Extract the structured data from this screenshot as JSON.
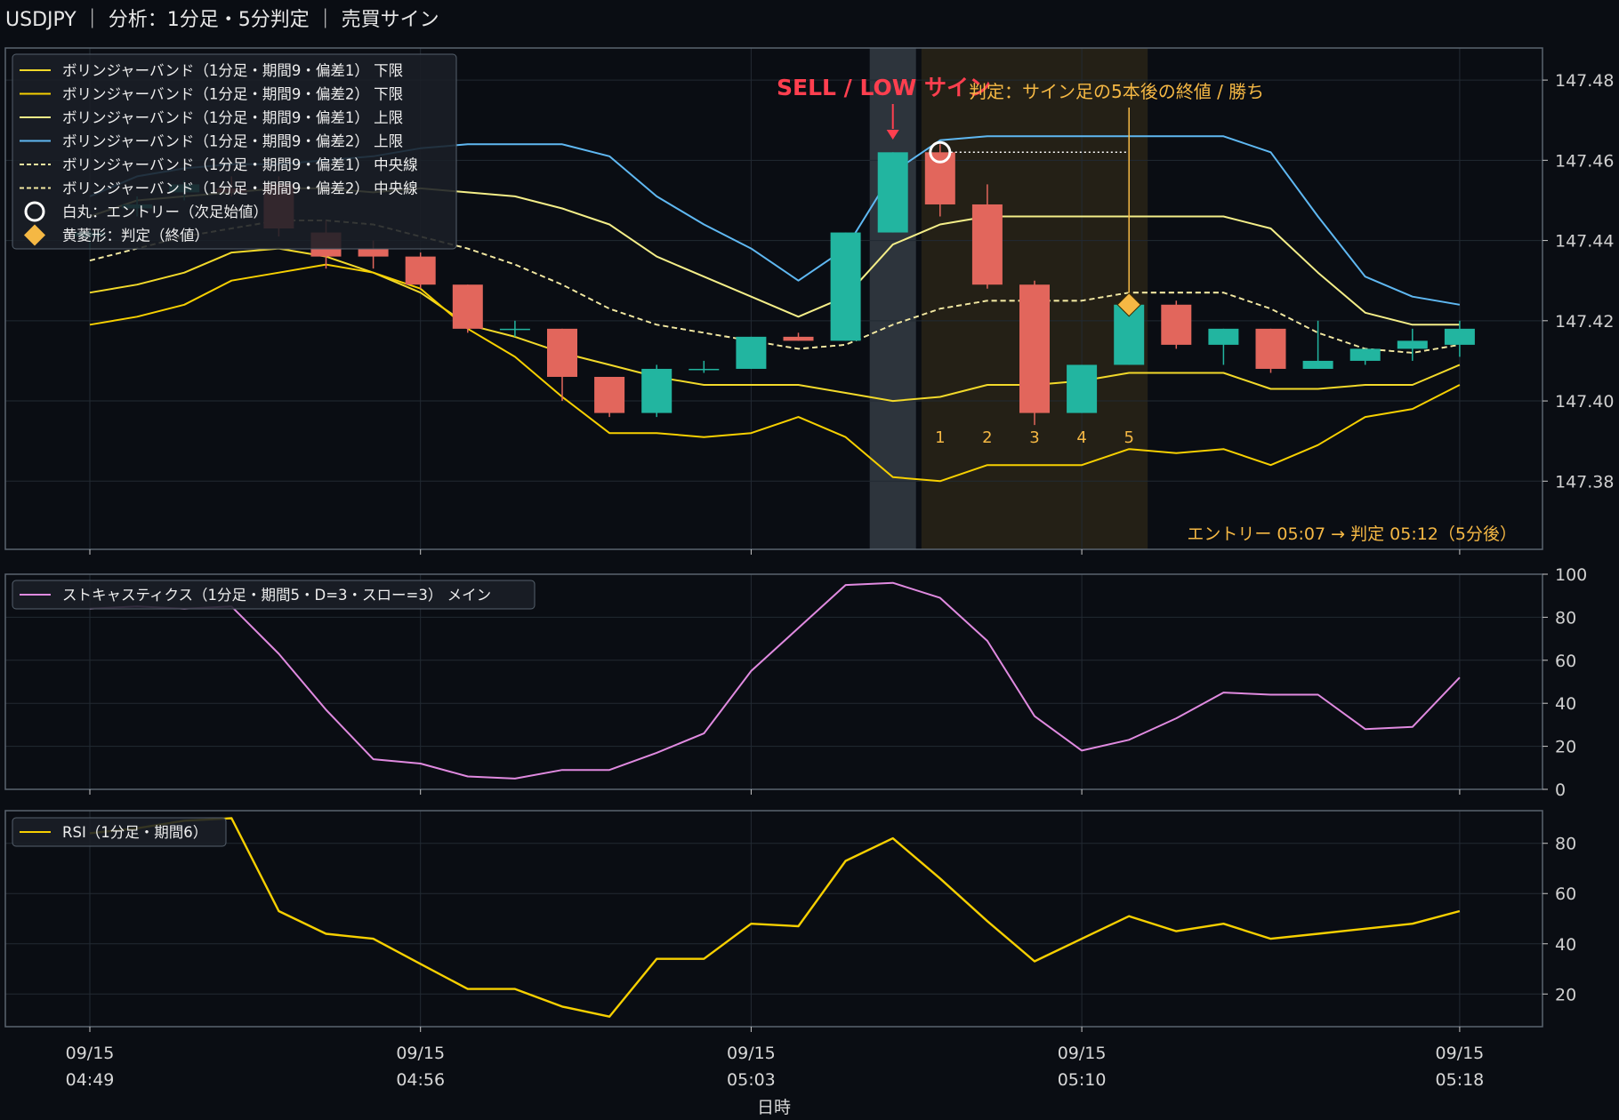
{
  "title": "USDJPY ｜ 分析：1分足・5分判定 ｜ 売買サイン",
  "colors": {
    "background": "#0a0d13",
    "panel_border": "#5a6470",
    "grid": "#222a33",
    "text": "#e6e6e6",
    "up": "#22b5a0",
    "down": "#e2665c",
    "band1": "#f2d92a",
    "band2_lower": "#f7d000",
    "band1_upper": "#f4ee88",
    "band2_upper": "#5fb8f2",
    "mid": "#f0e6a0",
    "stoch": "#e08ae0",
    "rsi": "#f7d000",
    "sell": "#ff3f4f",
    "judge": "#f5b844",
    "entry_shade": "#3a414b",
    "judge_shade": "#2b2618"
  },
  "chart_data": [
    {
      "type": "candlestick",
      "panel": "price",
      "x": [
        "04:49",
        "04:50",
        "04:51",
        "04:52",
        "04:53",
        "04:54",
        "04:55",
        "04:56",
        "04:57",
        "04:58",
        "04:59",
        "05:00",
        "05:01",
        "05:02",
        "05:03",
        "05:04",
        "05:05",
        "05:06",
        "05:07",
        "05:08",
        "05:09",
        "05:10",
        "05:11",
        "05:12",
        "05:13",
        "05:14",
        "05:15",
        "05:16",
        "05:17",
        "05:18"
      ],
      "x_tick_labels": [
        {
          "date": "09/15",
          "time": "04:49"
        },
        {
          "date": "09/15",
          "time": "04:56"
        },
        {
          "date": "09/15",
          "time": "05:03"
        },
        {
          "date": "09/15",
          "time": "05:10"
        },
        {
          "date": "09/15",
          "time": "05:18"
        }
      ],
      "xlabel": "日時",
      "ylim": [
        147.363,
        147.488
      ],
      "yticks": [
        147.38,
        147.4,
        147.42,
        147.44,
        147.46,
        147.48
      ],
      "candles": [
        {
          "o": 147.441,
          "h": 147.443,
          "l": 147.438,
          "c": 147.442
        },
        {
          "o": 147.448,
          "h": 147.451,
          "l": 147.446,
          "c": 147.449
        },
        {
          "o": 147.452,
          "h": 147.455,
          "l": 147.45,
          "c": 147.454
        },
        {
          "o": 147.453,
          "h": 147.456,
          "l": 147.451,
          "c": 147.452
        },
        {
          "o": 147.454,
          "h": 147.456,
          "l": 147.441,
          "c": 147.443
        },
        {
          "o": 147.442,
          "h": 147.445,
          "l": 147.433,
          "c": 147.436
        },
        {
          "o": 147.438,
          "h": 147.44,
          "l": 147.433,
          "c": 147.436
        },
        {
          "o": 147.436,
          "h": 147.437,
          "l": 147.428,
          "c": 147.429
        },
        {
          "o": 147.429,
          "h": 147.429,
          "l": 147.417,
          "c": 147.418
        },
        {
          "o": 147.418,
          "h": 147.42,
          "l": 147.416,
          "c": 147.418
        },
        {
          "o": 147.418,
          "h": 147.418,
          "l": 147.4,
          "c": 147.406
        },
        {
          "o": 147.406,
          "h": 147.406,
          "l": 147.396,
          "c": 147.397
        },
        {
          "o": 147.397,
          "h": 147.409,
          "l": 147.396,
          "c": 147.408
        },
        {
          "o": 147.408,
          "h": 147.41,
          "l": 147.407,
          "c": 147.408
        },
        {
          "o": 147.408,
          "h": 147.416,
          "l": 147.408,
          "c": 147.416
        },
        {
          "o": 147.416,
          "h": 147.417,
          "l": 147.415,
          "c": 147.415
        },
        {
          "o": 147.415,
          "h": 147.442,
          "l": 147.415,
          "c": 147.442
        },
        {
          "o": 147.442,
          "h": 147.462,
          "l": 147.442,
          "c": 147.462
        },
        {
          "o": 147.462,
          "h": 147.464,
          "l": 147.446,
          "c": 147.449
        },
        {
          "o": 147.449,
          "h": 147.454,
          "l": 147.428,
          "c": 147.429
        },
        {
          "o": 147.429,
          "h": 147.43,
          "l": 147.394,
          "c": 147.397
        },
        {
          "o": 147.397,
          "h": 147.409,
          "l": 147.397,
          "c": 147.409
        },
        {
          "o": 147.409,
          "h": 147.424,
          "l": 147.409,
          "c": 147.424
        },
        {
          "o": 147.424,
          "h": 147.425,
          "l": 147.413,
          "c": 147.414
        },
        {
          "o": 147.414,
          "h": 147.418,
          "l": 147.409,
          "c": 147.418
        },
        {
          "o": 147.418,
          "h": 147.418,
          "l": 147.407,
          "c": 147.408
        },
        {
          "o": 147.408,
          "h": 147.42,
          "l": 147.408,
          "c": 147.41
        },
        {
          "o": 147.41,
          "h": 147.413,
          "l": 147.409,
          "c": 147.413
        },
        {
          "o": 147.413,
          "h": 147.418,
          "l": 147.41,
          "c": 147.415
        },
        {
          "o": 147.414,
          "h": 147.42,
          "l": 147.411,
          "c": 147.418
        }
      ],
      "series": [
        {
          "name": "ボリンジャーバンド（1分足・期間9・偏差1） 下限",
          "color": "#f2d92a",
          "dash": false,
          "values": [
            147.427,
            147.429,
            147.432,
            147.437,
            147.438,
            147.436,
            147.432,
            147.427,
            147.419,
            147.416,
            147.412,
            147.409,
            147.406,
            147.404,
            147.404,
            147.404,
            147.402,
            147.4,
            147.401,
            147.404,
            147.404,
            147.405,
            147.407,
            147.407,
            147.407,
            147.403,
            147.403,
            147.404,
            147.404,
            147.409
          ]
        },
        {
          "name": "ボリンジャーバンド（1分足・期間9・偏差2） 下限",
          "color": "#f7d000",
          "dash": false,
          "values": [
            147.419,
            147.421,
            147.424,
            147.43,
            147.432,
            147.434,
            147.432,
            147.428,
            147.418,
            147.411,
            147.401,
            147.392,
            147.392,
            147.391,
            147.392,
            147.396,
            147.391,
            147.381,
            147.38,
            147.384,
            147.384,
            147.384,
            147.388,
            147.387,
            147.388,
            147.384,
            147.389,
            147.396,
            147.398,
            147.404
          ]
        },
        {
          "name": "ボリンジャーバンド（1分足・期間9・偏差1） 上限",
          "color": "#f4ee88",
          "dash": false,
          "values": [
            147.446,
            147.45,
            147.451,
            147.452,
            147.453,
            147.453,
            147.452,
            147.453,
            147.452,
            147.451,
            147.448,
            147.444,
            147.436,
            147.431,
            147.426,
            147.421,
            147.426,
            147.439,
            147.444,
            147.446,
            147.446,
            147.446,
            147.446,
            147.446,
            147.446,
            147.443,
            147.432,
            147.422,
            147.419,
            147.419
          ]
        },
        {
          "name": "ボリンジャーバンド（1分足・期間9・偏差2） 上限",
          "color": "#5fb8f2",
          "dash": false,
          "values": [
            147.451,
            147.456,
            147.458,
            147.459,
            147.459,
            147.46,
            147.461,
            147.463,
            147.464,
            147.464,
            147.464,
            147.461,
            147.451,
            147.444,
            147.438,
            147.43,
            147.438,
            147.457,
            147.465,
            147.466,
            147.466,
            147.466,
            147.466,
            147.466,
            147.466,
            147.462,
            147.446,
            147.431,
            147.426,
            147.424
          ]
        },
        {
          "name": "ボリンジャーバンド（1分足・期間9・偏差1） 中央線",
          "color": "#f0e6a0",
          "dash": true,
          "values": [
            147.435,
            147.438,
            147.441,
            147.443,
            147.445,
            147.445,
            147.444,
            147.441,
            147.438,
            147.434,
            147.429,
            147.423,
            147.419,
            147.417,
            147.415,
            147.413,
            147.414,
            147.419,
            147.423,
            147.425,
            147.425,
            147.425,
            147.427,
            147.427,
            147.427,
            147.423,
            147.417,
            147.413,
            147.412,
            147.414
          ]
        },
        {
          "name": "ボリンジャーバンド（1分足・期間9・偏差2） 中央線",
          "color": "#f0e6a0",
          "dash": true,
          "values": [
            147.435,
            147.438,
            147.441,
            147.443,
            147.445,
            147.445,
            147.444,
            147.441,
            147.438,
            147.434,
            147.429,
            147.423,
            147.419,
            147.417,
            147.415,
            147.413,
            147.414,
            147.419,
            147.423,
            147.425,
            147.425,
            147.425,
            147.427,
            147.427,
            147.427,
            147.423,
            147.417,
            147.413,
            147.412,
            147.414
          ]
        }
      ],
      "legend_extra": [
        "白丸：エントリー（次足始値）",
        "黄菱形：判定（終値）"
      ],
      "legend_position": "top-left",
      "annotations": {
        "sell_label": "SELL / LOW サイン",
        "sell_index": 17,
        "entry_index": 18,
        "entry_price": 147.462,
        "judge_label": "判定：サイン足の5本後の終値 / 勝ち",
        "judge_index": 22,
        "judge_price": 147.424,
        "count_labels": [
          "1",
          "2",
          "3",
          "4",
          "5"
        ],
        "count_start_index": 18,
        "footer": "エントリー 05:07 → 判定 05:12（5分後）"
      }
    },
    {
      "type": "line",
      "panel": "stochastics",
      "series": [
        {
          "name": "ストキャスティクス（1分足・期間5・D=3・スロー=3） メイン",
          "color": "#e08ae0",
          "values": [
            84,
            85,
            84,
            85,
            63,
            37,
            14,
            12,
            6,
            5,
            9,
            9,
            17,
            26,
            55,
            75,
            95,
            96,
            89,
            69,
            34,
            18,
            23,
            33,
            45,
            44,
            44,
            28,
            29,
            52
          ]
        }
      ],
      "ylim": [
        0,
        100
      ],
      "yticks": [
        0,
        20,
        40,
        60,
        80,
        100
      ]
    },
    {
      "type": "line",
      "panel": "rsi",
      "series": [
        {
          "name": "RSI（1分足・期間6）",
          "color": "#f7d000",
          "values": [
            84,
            86,
            89,
            90,
            53,
            44,
            42,
            32,
            22,
            22,
            15,
            11,
            34,
            34,
            48,
            47,
            73,
            82,
            66,
            49,
            33,
            42,
            51,
            45,
            48,
            42,
            44,
            46,
            48,
            53
          ]
        }
      ],
      "ylim": [
        7,
        93
      ],
      "yticks": [
        20,
        40,
        60,
        80
      ]
    }
  ]
}
